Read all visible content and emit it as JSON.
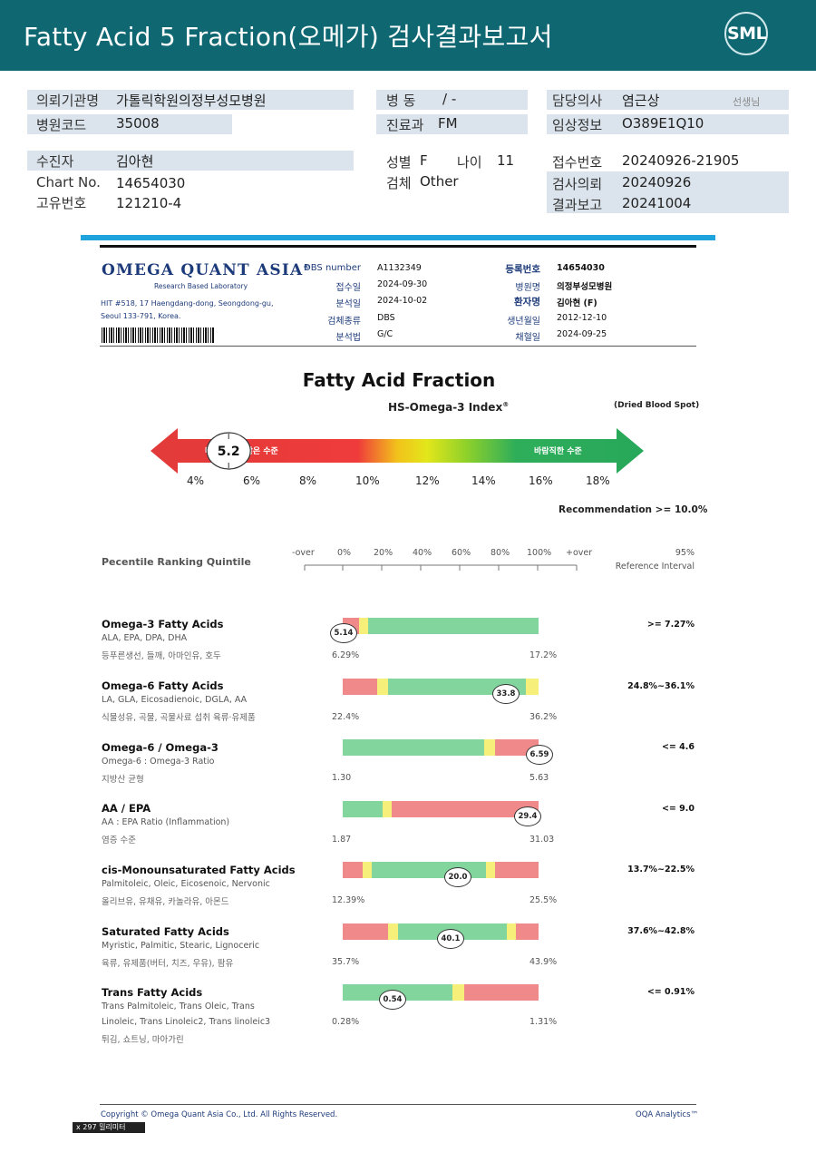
{
  "header": {
    "title": "Fatty Acid 5 Fraction(오메가) 검사결과보고서",
    "logo": "SML",
    "color": "#0f6771"
  },
  "patient_info": {
    "requesting_org_label": "의뢰기관명",
    "requesting_org": "가톨릭학원의정부성모병원",
    "hospital_code_label": "병원코드",
    "hospital_code": "35008",
    "ward_label": "병 동",
    "ward": "/ -",
    "dept_label": "진료과",
    "dept": "FM",
    "doctor_label": "담당의사",
    "doctor": "염근상",
    "doctor_suffix": "선생님",
    "clinical_label": "임상정보",
    "clinical": "O389E1Q10",
    "patient_label": "수진자",
    "patient": "김아현",
    "sex_label": "성별",
    "sex": "F",
    "age_label": "나이",
    "age": "11",
    "receipt_label": "접수번호",
    "receipt": "20240926-21905",
    "chart_label": "Chart No.",
    "chart": "14654030",
    "specimen_label": "검체",
    "specimen": "Other",
    "request_label": "검사의뢰",
    "request_date": "20240926",
    "unique_label": "고유번호",
    "unique": "121210-4",
    "result_label": "결과보고",
    "result_date": "20241004"
  },
  "lab": {
    "name": "OMEGA QUANT ASIA",
    "reg": "®",
    "tagline": "Research Based Laboratory",
    "address1": "HIT #518, 17 Haengdang-dong, Seongdong-gu,",
    "address2": "Seoul 133-791, Korea."
  },
  "report_meta": {
    "dbs_label": "DBS number",
    "dbs": "A1132349",
    "received_label": "접수일",
    "received": "2024-09-30",
    "analyzed_label": "분석일",
    "analyzed": "2024-10-02",
    "sample_type_label": "검체종류",
    "sample_type": "DBS",
    "method_label": "분석법",
    "method": "G/C",
    "reg_no_label": "등록번호",
    "reg_no": "14654030",
    "hospital_label": "병원명",
    "hospital": "의정부성모병원",
    "patient_label": "환자명",
    "patient": "김아현 (F)",
    "dob_label": "생년월일",
    "dob": "2012-12-10",
    "collected_label": "채혈일",
    "collected": "2024-09-25"
  },
  "index": {
    "section_title": "Fatty Acid Fraction",
    "name": "HS-Omega-3 Index",
    "reg": "®",
    "sample_note": "(Dried Blood Spot)",
    "value": "5.2",
    "value_percent": 5.2,
    "low_label": "바람직하지 않은 수준",
    "high_label": "바람직한 수준",
    "ticks": [
      "4%",
      "6%",
      "8%",
      "10%",
      "12%",
      "14%",
      "16%",
      "18%"
    ],
    "recommendation": "Recommendation  >= 10.0%"
  },
  "percentile": {
    "label": "Pecentile Ranking Quintile",
    "scale": [
      "-over",
      "0%",
      "20%",
      "40%",
      "60%",
      "80%",
      "100%",
      "+over"
    ],
    "ref_title1": "95%",
    "ref_title2": "Reference Interval"
  },
  "results": [
    {
      "name": "Omega-3 Fatty Acids",
      "sub": "ALA, EPA, DPA, DHA",
      "food": "등푸른생선, 들깨, 아마인유, 호두",
      "value": "5.14",
      "min": "6.29%",
      "max": "17.2%",
      "ref": ">= 7.27%",
      "marker_pct": 0.0
    },
    {
      "name": "Omega-6 Fatty Acids",
      "sub": "LA, GLA, Eicosadienoic, DGLA, AA",
      "food": "식물성유, 곡물, 곡물사료 섭취 육류·유제품",
      "value": "33.8",
      "min": "22.4%",
      "max": "36.2%",
      "ref": "24.8%~36.1%",
      "marker_pct": 0.83
    },
    {
      "name": "Omega-6 / Omega-3",
      "sub": "Omega-6 : Omega-3 Ratio",
      "food": "지방산 균형",
      "value": "6.59",
      "min": "1.30",
      "max": "5.63",
      "ref": "<= 4.6",
      "marker_pct": 1.0
    },
    {
      "name": "AA / EPA",
      "sub": "AA : EPA Ratio (Inflammation)",
      "food": "염증 수준",
      "value": "29.4",
      "min": "1.87",
      "max": "31.03",
      "ref": "<= 9.0",
      "marker_pct": 0.94
    },
    {
      "name": "cis-Monounsaturated Fatty Acids",
      "sub": "Palmitoleic, Oleic, Eicosenoic, Nervonic",
      "food": "올리브유, 유채유, 카놀라유, 아몬드",
      "value": "20.0",
      "min": "12.39%",
      "max": "25.5%",
      "ref": "13.7%~22.5%",
      "marker_pct": 0.58
    },
    {
      "name": "Saturated Fatty Acids",
      "sub": "Myristic, Palmitic, Stearic, Lignoceric",
      "food": "육류, 유제품(버터, 치즈, 우유), 팜유",
      "value": "40.1",
      "min": "35.7%",
      "max": "43.9%",
      "ref": "37.6%~42.8%",
      "marker_pct": 0.54
    },
    {
      "name": "Trans Fatty Acids",
      "sub": "Trans Palmitoleic, Trans Oleic, Trans",
      "sub2": "Linoleic, Trans Linoleic2, Trans linoleic3",
      "food": "튀김, 쇼트닝, 마아가린",
      "value": "0.54",
      "min": "0.28%",
      "max": "1.31%",
      "ref": "<= 0.91%",
      "marker_pct": 0.25
    }
  ],
  "footer": {
    "copyright": "Copyright © Omega Quant Asia Co., Ltd.  All Rights Reserved.",
    "brand": "OQA Analytics™",
    "stub": "x 297 밀리미터"
  }
}
